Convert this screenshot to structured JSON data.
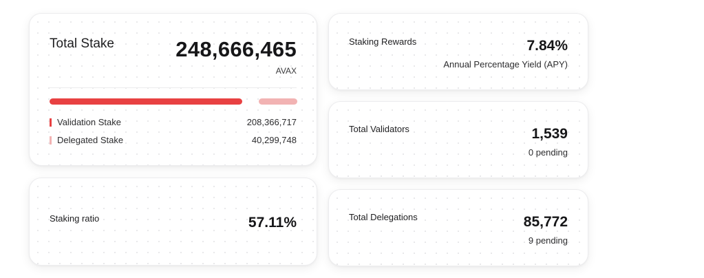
{
  "total_stake": {
    "title": "Total Stake",
    "value": "248,666,465",
    "unit": "AVAX",
    "progress": {
      "validation_fraction": 0.838,
      "delegated_fraction": 0.162,
      "validation_color": "#e84142",
      "delegated_color": "#f2b3b3"
    },
    "legend": [
      {
        "label": "Validation Stake",
        "value": "208,366,717"
      },
      {
        "label": "Delegated Stake",
        "value": "40,299,748"
      }
    ]
  },
  "staking_ratio": {
    "label": "Staking ratio",
    "value": "57.11%"
  },
  "staking_rewards": {
    "label": "Staking Rewards",
    "value": "7.84%",
    "sub": "Annual Percentage Yield (APY)"
  },
  "total_validators": {
    "label": "Total Validators",
    "value": "1,539",
    "sub": "0 pending"
  },
  "total_delegations": {
    "label": "Total Delegations",
    "value": "85,772",
    "sub": "9 pending"
  }
}
